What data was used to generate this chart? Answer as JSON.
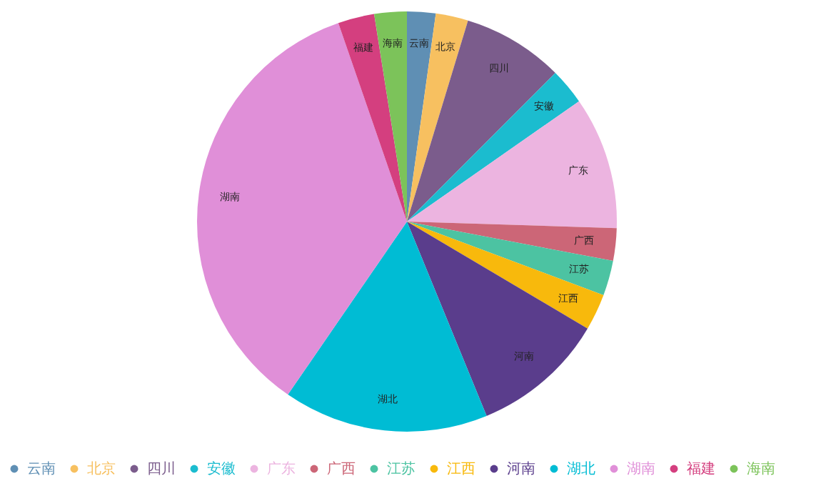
{
  "chart_data": {
    "type": "pie",
    "categories": [
      "云南",
      "北京",
      "四川",
      "安徽",
      "广东",
      "广西",
      "江苏",
      "江西",
      "河南",
      "湖北",
      "湖南",
      "福建",
      "海南"
    ],
    "values": [
      2.2,
      2.5,
      7.8,
      2.8,
      10.2,
      2.5,
      2.7,
      2.8,
      10.3,
      15.8,
      35.1,
      2.8,
      2.5
    ],
    "colors": [
      "#5f8fb4",
      "#f7c060",
      "#7b5c8c",
      "#1bbccf",
      "#ecb4e0",
      "#cc6677",
      "#4cc3a2",
      "#f8b90c",
      "#5a3d8c",
      "#00bcd4",
      "#e08fd8",
      "#d43f7f",
      "#7cc35a"
    ],
    "legend": "bottom"
  }
}
